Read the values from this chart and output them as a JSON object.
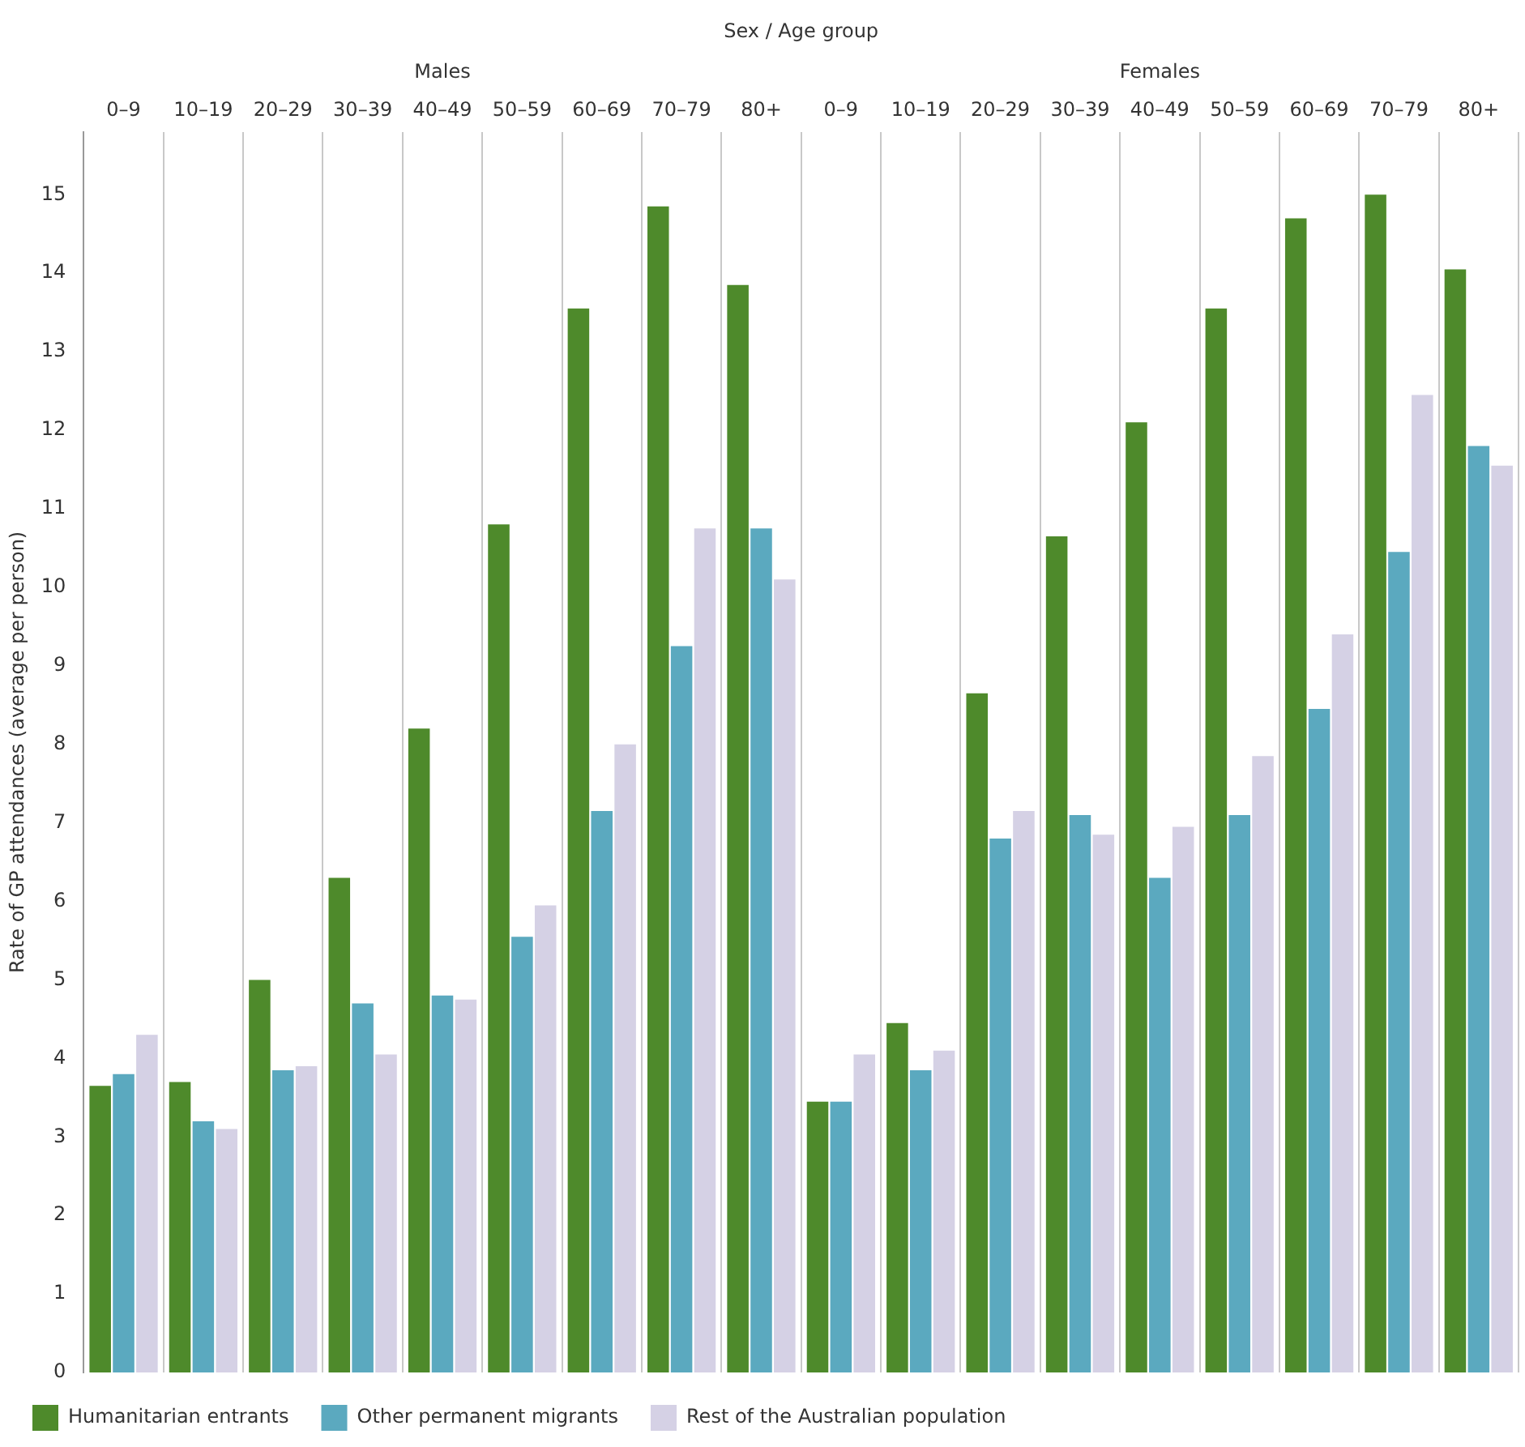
{
  "chart_data": {
    "type": "bar",
    "xlabel": "Sex / Age group",
    "ylabel": "Rate of GP attendances (average per person)",
    "annotations": [
      "Males",
      "Females"
    ],
    "categories": [
      "0–9",
      "10–19",
      "20–29",
      "30–39",
      "40–49",
      "50–59",
      "60–69",
      "70–79",
      "80+",
      "0–9",
      "10–19",
      "20–29",
      "30–39",
      "40–49",
      "50–59",
      "60–69",
      "70–79",
      "80+"
    ],
    "series": [
      {
        "name": "Humanitarian entrants",
        "color": "#4e8a2b",
        "values": [
          3.65,
          3.7,
          5.0,
          6.3,
          8.2,
          10.8,
          13.55,
          14.85,
          13.85,
          3.45,
          4.45,
          8.65,
          10.65,
          12.1,
          13.55,
          14.7,
          15.0,
          14.05
        ]
      },
      {
        "name": "Other permanent migrants",
        "color": "#5ba9bf",
        "values": [
          3.8,
          3.2,
          3.85,
          4.7,
          4.8,
          5.55,
          7.15,
          9.25,
          10.75,
          3.45,
          3.85,
          6.8,
          7.1,
          6.3,
          7.1,
          8.45,
          10.45,
          11.8
        ]
      },
      {
        "name": "Rest of the Australian population",
        "color": "#d5d1e5",
        "values": [
          4.3,
          3.1,
          3.9,
          4.05,
          4.75,
          5.95,
          8.0,
          10.75,
          10.1,
          4.05,
          4.1,
          7.15,
          6.85,
          6.95,
          7.85,
          9.4,
          12.45,
          11.55
        ]
      }
    ],
    "ylim": [
      0,
      15.8
    ],
    "yticks": [
      0,
      1,
      2,
      3,
      4,
      5,
      6,
      7,
      8,
      9,
      10,
      11,
      12,
      13,
      14,
      15
    ],
    "grid": "x",
    "legend": "bottom"
  }
}
